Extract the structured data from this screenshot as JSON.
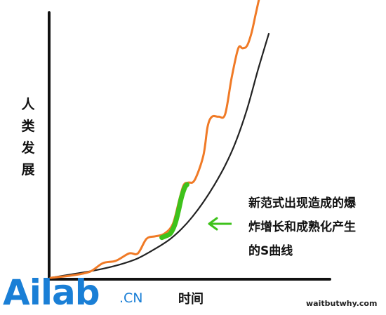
{
  "chart_data": {
    "type": "line",
    "ylabel": "人类发展",
    "xlabel": "时间",
    "series": [
      {
        "color": "#222222",
        "x": [
          0,
          10,
          20,
          30,
          40,
          50,
          55,
          60,
          65,
          70,
          75,
          80,
          85,
          90,
          95,
          100
        ],
        "y": [
          0,
          1.5,
          3,
          5,
          8,
          13,
          16,
          20,
          25,
          31,
          38,
          46,
          56,
          69,
          85,
          100
        ]
      },
      {
        "color": "#f07a26",
        "x": [
          0,
          10,
          18,
          24,
          30,
          36,
          40,
          44,
          48,
          52,
          56,
          59,
          61,
          63,
          66,
          70,
          72,
          74,
          77,
          80,
          83,
          86,
          88,
          90,
          92,
          94,
          96,
          98,
          100
        ],
        "y": [
          0,
          1,
          2.5,
          6,
          7,
          10,
          10,
          16,
          17,
          18,
          22,
          32,
          38,
          39,
          40,
          50,
          62,
          66,
          66,
          67,
          82,
          94,
          94,
          95,
          100,
          108,
          116,
          123,
          118
        ]
      }
    ],
    "highlight": {
      "color": "#3ec21b",
      "x": [
        51,
        53,
        55,
        57,
        58.5,
        60,
        61.5,
        62.5
      ],
      "y": [
        16.5,
        17.2,
        18.3,
        22,
        27,
        33,
        37,
        38.2
      ]
    }
  },
  "annotation": {
    "lines": [
      "新范式出现造成的爆",
      "炸增长和成熟化产生",
      "的S曲线"
    ],
    "arrow_color": "#3ec21b"
  },
  "credit": "waitbutwhy.com",
  "logo": {
    "main": "Ailab",
    "suffix": ".CN",
    "color": "#1a7fd6"
  }
}
